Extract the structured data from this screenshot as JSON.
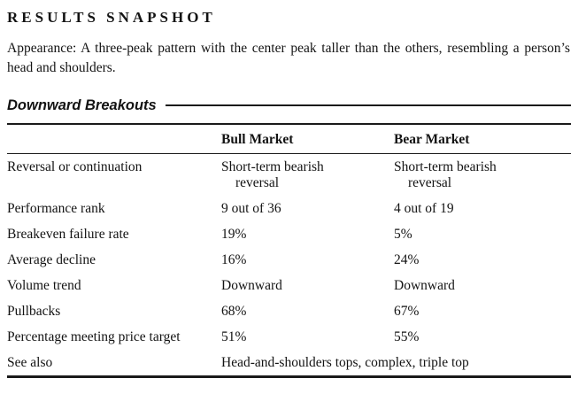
{
  "page": {
    "title": "RESULTS SNAPSHOT",
    "appearance": "Appearance: A three-peak pattern with the center peak taller than the others, resembling a person’s head and shoulders.",
    "section_heading": "Downward Breakouts"
  },
  "table": {
    "columns": [
      "",
      "Bull Market",
      "Bear Market"
    ],
    "rows": [
      {
        "label": "Reversal or continuation",
        "bull": "Short-term bearish reversal",
        "bear": "Short-term bearish reversal"
      },
      {
        "label": "Performance rank",
        "bull": "9 out of 36",
        "bear": "4 out of 19"
      },
      {
        "label": "Breakeven failure rate",
        "bull": "19%",
        "bear": "5%"
      },
      {
        "label": "Average decline",
        "bull": "16%",
        "bear": "24%"
      },
      {
        "label": "Volume trend",
        "bull": "Downward",
        "bear": "Downward"
      },
      {
        "label": "Pullbacks",
        "bull": "68%",
        "bear": "67%"
      },
      {
        "label": "Percentage meeting price target",
        "bull": "51%",
        "bear": "55%"
      },
      {
        "label": "See also",
        "span": "Head-and-shoulders tops, complex, triple top"
      }
    ]
  }
}
